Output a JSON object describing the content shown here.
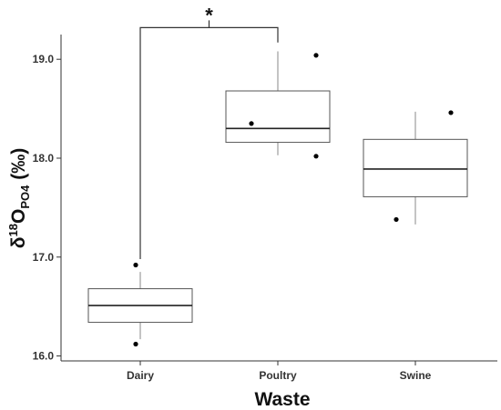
{
  "chart_data": {
    "type": "box",
    "xlabel": "Waste",
    "ylabel": {
      "base": "δ",
      "sup": "18",
      "main": "O",
      "sub": "PO4",
      "unit": " (‰)"
    },
    "ylim": [
      15.95,
      19.25
    ],
    "yticks": [
      "16.0",
      "17.0",
      "18.0",
      "19.0"
    ],
    "grid": false,
    "categories": [
      "Dairy",
      "Poultry",
      "Swine"
    ],
    "boxes": [
      {
        "category": "Dairy",
        "whisker_low": 16.17,
        "q1": 16.34,
        "median": 16.51,
        "q3": 16.68,
        "whisker_high": 16.85,
        "points": [
          16.92,
          16.12
        ]
      },
      {
        "category": "Poultry",
        "whisker_low": 18.03,
        "q1": 18.16,
        "median": 18.3,
        "q3": 18.68,
        "whisker_high": 19.08,
        "points": [
          19.04,
          18.35,
          18.02
        ]
      },
      {
        "category": "Swine",
        "whisker_low": 17.33,
        "q1": 17.61,
        "median": 17.89,
        "q3": 18.19,
        "whisker_high": 18.47,
        "points": [
          18.46,
          17.38
        ]
      }
    ],
    "significance": {
      "from": "Dairy",
      "to": "Poultry",
      "label": "*",
      "y": 19.32,
      "left_drop_to": 16.98,
      "right_drop_to": 19.17
    }
  },
  "colors": {
    "box_stroke": "#555555",
    "whisker": "#888888",
    "point": "#000000",
    "axis": "#333333"
  }
}
